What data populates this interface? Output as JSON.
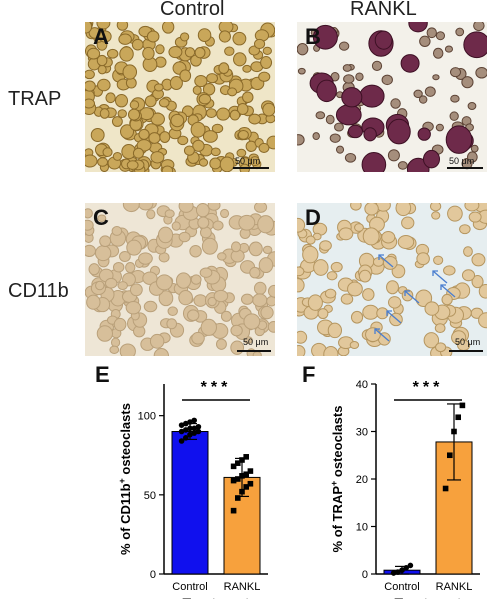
{
  "columns": {
    "left": "Control",
    "right": "RANKL"
  },
  "rows": {
    "top": "TRAP",
    "bottom": "CD11b"
  },
  "panels": {
    "A": {
      "label": "A",
      "scale": "50 μm"
    },
    "B": {
      "label": "B",
      "scale": "50 μm"
    },
    "C": {
      "label": "C",
      "scale": "50 μm"
    },
    "D": {
      "label": "D",
      "scale": "50 μm"
    },
    "E": {
      "label": "E"
    },
    "F": {
      "label": "F"
    }
  },
  "colors": {
    "control_E": "#1010ee",
    "rankl": "#f7a13d",
    "control_F": "#1010ee"
  },
  "chart_data": [
    {
      "type": "bar",
      "panel": "E",
      "categories": [
        "Control",
        "RANKL"
      ],
      "values": [
        90,
        61
      ],
      "error": [
        5,
        12
      ],
      "points": [
        [
          84,
          86,
          88,
          89,
          90,
          90,
          91,
          92,
          92,
          93,
          94,
          95,
          96,
          97
        ],
        [
          40,
          48,
          52,
          55,
          57,
          59,
          60,
          62,
          63,
          65,
          68,
          70,
          72,
          74
        ]
      ],
      "ylabel_pre": "% of CD11b",
      "ylabel_sup": "+",
      "ylabel_post": " osteoclasts",
      "xlabel": "Treatment",
      "ylim": [
        0,
        120
      ],
      "yticks": [
        "0",
        "50",
        "100"
      ],
      "significance": "***"
    },
    {
      "type": "bar",
      "panel": "F",
      "categories": [
        "Control",
        "RANKL"
      ],
      "values": [
        0.8,
        27.8
      ],
      "error": [
        0.8,
        8
      ],
      "points": [
        [
          0.2,
          0.4,
          0.8,
          1.3,
          1.8
        ],
        [
          18,
          25,
          30,
          33,
          35.5
        ]
      ],
      "ylabel_pre": "% of TRAP",
      "ylabel_sup": "+",
      "ylabel_post": " osteoclasts",
      "xlabel": "Treatment",
      "ylim": [
        0,
        40
      ],
      "yticks": [
        "0",
        "10",
        "20",
        "30",
        "40"
      ],
      "significance": "***"
    }
  ]
}
